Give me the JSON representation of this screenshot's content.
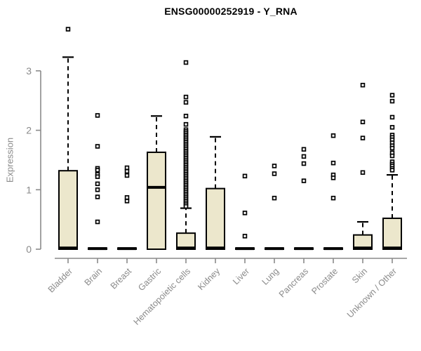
{
  "chart_data": {
    "type": "boxplot",
    "title": "ENSG00000252919 - Y_RNA",
    "ylabel": "Expression",
    "xlabel": "",
    "ylim": [
      0,
      3.8
    ],
    "yticks": [
      0,
      1,
      2,
      3
    ],
    "grid": false,
    "legend": "none",
    "colors": {
      "box_fill": "#ece7cc",
      "box_stroke": "#000000",
      "axis": "#8a8a8a",
      "tick_label": "#8a8a8a",
      "title": "#000000"
    },
    "categories": [
      "Bladder",
      "Brain",
      "Breast",
      "Gastric",
      "Hematopoietic cells",
      "Kidney",
      "Liver",
      "Lung",
      "Pancreas",
      "Prostate",
      "Skin",
      "Unknown / Other"
    ],
    "series": [
      {
        "category": "Bladder",
        "q1": 0,
        "median": 0.02,
        "q3": 1.32,
        "whisker_low": 0,
        "whisker_high": 3.23,
        "outliers": [
          3.7
        ]
      },
      {
        "category": "Brain",
        "q1": 0,
        "median": 0.01,
        "q3": 0.02,
        "whisker_low": 0,
        "whisker_high": 0.02,
        "outliers": [
          2.25,
          1.73,
          1.36,
          1.33,
          1.26,
          1.22,
          1.1,
          1.0,
          0.88,
          0.46
        ]
      },
      {
        "category": "Breast",
        "q1": 0,
        "median": 0.01,
        "q3": 0.02,
        "whisker_low": 0,
        "whisker_high": 0.02,
        "outliers": [
          1.37,
          1.31,
          1.24,
          0.87,
          0.81
        ]
      },
      {
        "category": "Gastric",
        "q1": 0,
        "median": 1.04,
        "q3": 1.63,
        "whisker_low": 0,
        "whisker_high": 2.24,
        "outliers": []
      },
      {
        "category": "Hematopoietic cells",
        "q1": 0,
        "median": 0.02,
        "q3": 0.27,
        "whisker_low": 0,
        "whisker_high": 0.69,
        "outliers": [
          3.14,
          2.56,
          2.47,
          2.24,
          2.1,
          2.01,
          1.98,
          1.95,
          1.92,
          1.89,
          1.86,
          1.83,
          1.8,
          1.77,
          1.74,
          1.71,
          1.68,
          1.65,
          1.62,
          1.59,
          1.56,
          1.53,
          1.5,
          1.47,
          1.44,
          1.41,
          1.38,
          1.35,
          1.32,
          1.29,
          1.26,
          1.23,
          1.2,
          1.17,
          1.14,
          1.11,
          1.08,
          1.05,
          1.02,
          0.99,
          0.96,
          0.93,
          0.9,
          0.87,
          0.84,
          0.81,
          0.78,
          0.75,
          0.72
        ]
      },
      {
        "category": "Kidney",
        "q1": 0,
        "median": 0.02,
        "q3": 1.02,
        "whisker_low": 0,
        "whisker_high": 1.89,
        "outliers": []
      },
      {
        "category": "Liver",
        "q1": 0,
        "median": 0.01,
        "q3": 0.02,
        "whisker_low": 0,
        "whisker_high": 0.02,
        "outliers": [
          1.23,
          0.61,
          0.22
        ]
      },
      {
        "category": "Lung",
        "q1": 0,
        "median": 0.01,
        "q3": 0.02,
        "whisker_low": 0,
        "whisker_high": 0.02,
        "outliers": [
          1.4,
          1.27,
          0.86
        ]
      },
      {
        "category": "Pancreas",
        "q1": 0,
        "median": 0.01,
        "q3": 0.02,
        "whisker_low": 0,
        "whisker_high": 0.02,
        "outliers": [
          1.68,
          1.56,
          1.44,
          1.15
        ]
      },
      {
        "category": "Prostate",
        "q1": 0,
        "median": 0.01,
        "q3": 0.02,
        "whisker_low": 0,
        "whisker_high": 0.02,
        "outliers": [
          1.91,
          1.45,
          1.25,
          1.2,
          0.86
        ]
      },
      {
        "category": "Skin",
        "q1": 0,
        "median": 0.02,
        "q3": 0.24,
        "whisker_low": 0,
        "whisker_high": 0.46,
        "outliers": [
          2.76,
          2.14,
          1.87,
          1.29
        ]
      },
      {
        "category": "Unknown / Other",
        "q1": 0,
        "median": 0.02,
        "q3": 0.52,
        "whisker_low": 0,
        "whisker_high": 1.25,
        "outliers": [
          2.59,
          2.49,
          2.22,
          2.05,
          1.92,
          1.88,
          1.84,
          1.79,
          1.74,
          1.7,
          1.62,
          1.57,
          1.47,
          1.43,
          1.4,
          1.36,
          1.33
        ]
      }
    ]
  }
}
